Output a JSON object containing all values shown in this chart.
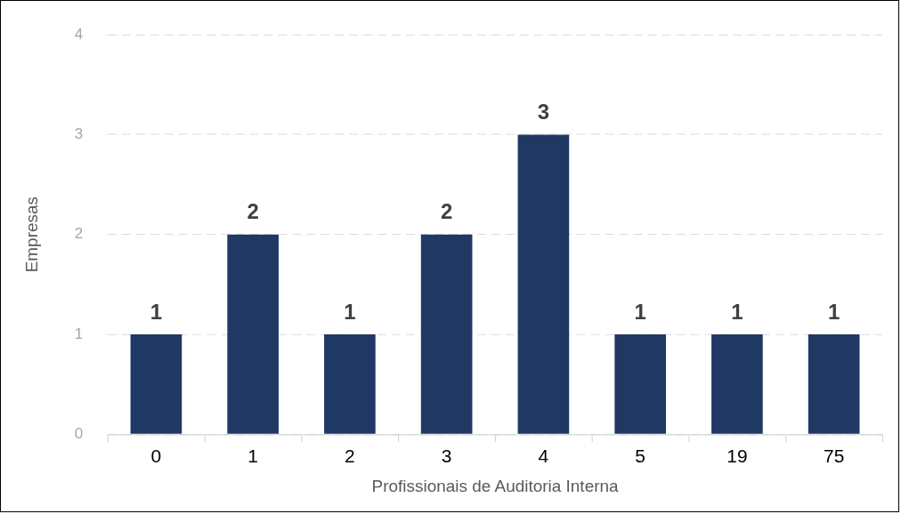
{
  "chart_data": {
    "type": "bar",
    "xlabel": "Profissionais de Auditoria Interna",
    "ylabel": "Empresas",
    "categories": [
      "0",
      "1",
      "2",
      "3",
      "4",
      "5",
      "19",
      "75"
    ],
    "series": [
      {
        "color": "#203864",
        "values": [
          1,
          2,
          1,
          2,
          3,
          1,
          1,
          1
        ]
      }
    ],
    "ylim": [
      0,
      4
    ],
    "yticks": [
      0,
      1,
      2,
      3,
      4
    ],
    "grid": "y",
    "data_labels": true,
    "legend": false
  }
}
